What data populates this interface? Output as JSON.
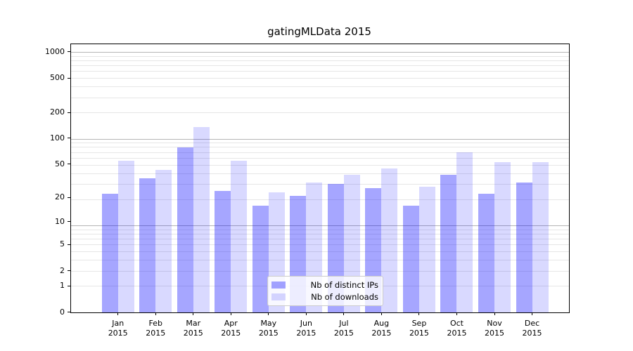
{
  "chart_data": {
    "type": "bar",
    "title": "gatingMLData 2015",
    "months": [
      "Jan",
      "Feb",
      "Mar",
      "Apr",
      "May",
      "Jun",
      "Jul",
      "Aug",
      "Sep",
      "Oct",
      "Nov",
      "Dec"
    ],
    "year": "2015",
    "series": [
      {
        "name": "Nb of distinct IPs",
        "color": "rgba(0,0,255,0.35)",
        "values": [
          22,
          34,
          78,
          24,
          16,
          21,
          29,
          26,
          16,
          37,
          22,
          30
        ]
      },
      {
        "name": "Nb of downloads",
        "color": "rgba(0,0,255,0.15)",
        "values": [
          55,
          43,
          134,
          55,
          23,
          30,
          37,
          44,
          27,
          69,
          53,
          53
        ]
      }
    ],
    "yticks": [
      0,
      1,
      2,
      5,
      10,
      20,
      50,
      100,
      200,
      500,
      1000
    ],
    "yscale": "log10(1+v)",
    "ylim": [
      0,
      1230
    ],
    "grid": {
      "on": true,
      "major_color": "#b5b5b5",
      "minor_color": "#e6e6e6"
    },
    "axis_color": "#000000",
    "legend_position": "lower-center"
  }
}
